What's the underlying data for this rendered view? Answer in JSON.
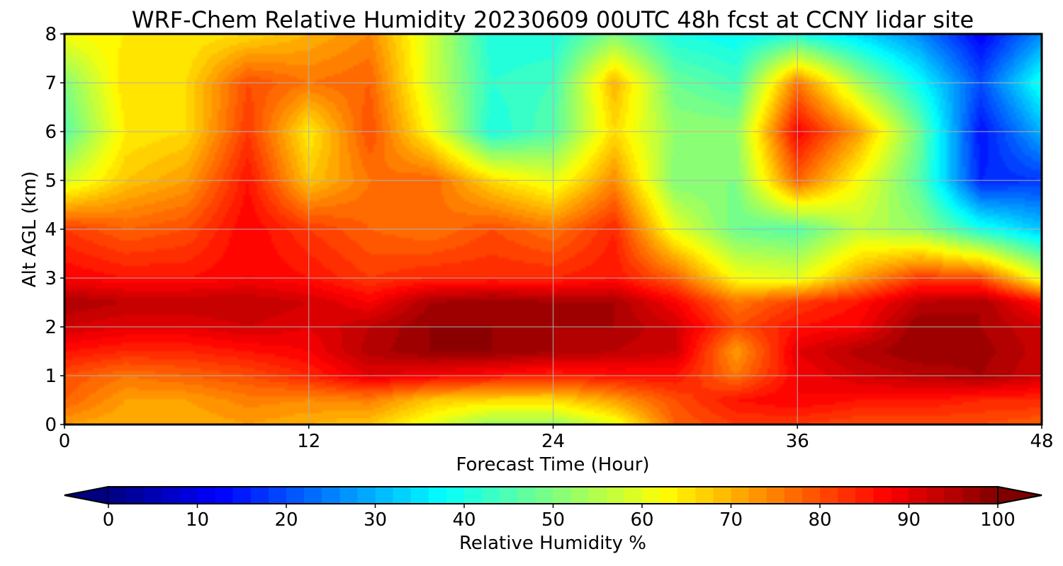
{
  "chart_data": {
    "type": "heatmap",
    "title": "WRF-Chem Relative Humidity 20230609 00UTC 48h fcst at CCNY lidar site",
    "xlabel": "Forecast Time (Hour)",
    "ylabel": "Alt AGL (km)",
    "colorbar_label": "Relative Humidity %",
    "xlim": [
      0,
      48
    ],
    "ylim": [
      0,
      8
    ],
    "xticks": [
      0,
      12,
      24,
      36,
      48
    ],
    "yticks": [
      0,
      1,
      2,
      3,
      4,
      5,
      6,
      7,
      8
    ],
    "colorbar_ticks": [
      0,
      10,
      20,
      30,
      40,
      50,
      60,
      70,
      80,
      90,
      100
    ],
    "colorbar_range": [
      0,
      100
    ],
    "colormap": "jet",
    "grid": true,
    "x": [
      0,
      3,
      6,
      9,
      12,
      15,
      18,
      21,
      24,
      27,
      30,
      33,
      36,
      39,
      42,
      45,
      48
    ],
    "y": [
      0,
      0.5,
      1,
      1.5,
      2,
      2.5,
      3,
      4,
      5,
      6,
      7,
      8
    ],
    "values": [
      [
        72,
        70,
        70,
        72,
        70,
        68,
        60,
        52,
        52,
        60,
        78,
        82,
        82,
        80,
        80,
        80,
        78
      ],
      [
        78,
        72,
        72,
        75,
        74,
        75,
        68,
        66,
        66,
        72,
        80,
        86,
        88,
        86,
        86,
        84,
        84
      ],
      [
        80,
        76,
        78,
        80,
        84,
        90,
        88,
        86,
        84,
        86,
        86,
        76,
        88,
        92,
        94,
        96,
        92
      ],
      [
        86,
        84,
        84,
        86,
        88,
        95,
        98,
        98,
        96,
        94,
        92,
        72,
        90,
        95,
        98,
        97,
        93
      ],
      [
        92,
        90,
        90,
        92,
        90,
        94,
        98,
        98,
        96,
        96,
        92,
        80,
        86,
        88,
        98,
        96,
        92
      ],
      [
        96,
        94,
        94,
        94,
        92,
        88,
        96,
        98,
        96,
        96,
        88,
        76,
        82,
        86,
        94,
        96,
        86
      ],
      [
        88,
        86,
        86,
        88,
        86,
        82,
        84,
        84,
        84,
        86,
        78,
        62,
        60,
        72,
        82,
        80,
        60
      ],
      [
        82,
        78,
        80,
        88,
        82,
        78,
        76,
        80,
        76,
        84,
        60,
        48,
        46,
        56,
        52,
        40,
        32
      ],
      [
        58,
        68,
        72,
        86,
        68,
        76,
        78,
        66,
        60,
        74,
        50,
        50,
        78,
        62,
        46,
        16,
        18
      ],
      [
        46,
        64,
        66,
        82,
        64,
        80,
        62,
        40,
        46,
        66,
        52,
        52,
        88,
        72,
        48,
        14,
        30
      ],
      [
        50,
        66,
        66,
        80,
        76,
        78,
        58,
        42,
        44,
        70,
        48,
        44,
        76,
        54,
        38,
        20,
        40
      ],
      [
        62,
        64,
        64,
        66,
        70,
        74,
        58,
        40,
        40,
        50,
        40,
        38,
        40,
        34,
        26,
        12,
        26
      ]
    ]
  }
}
